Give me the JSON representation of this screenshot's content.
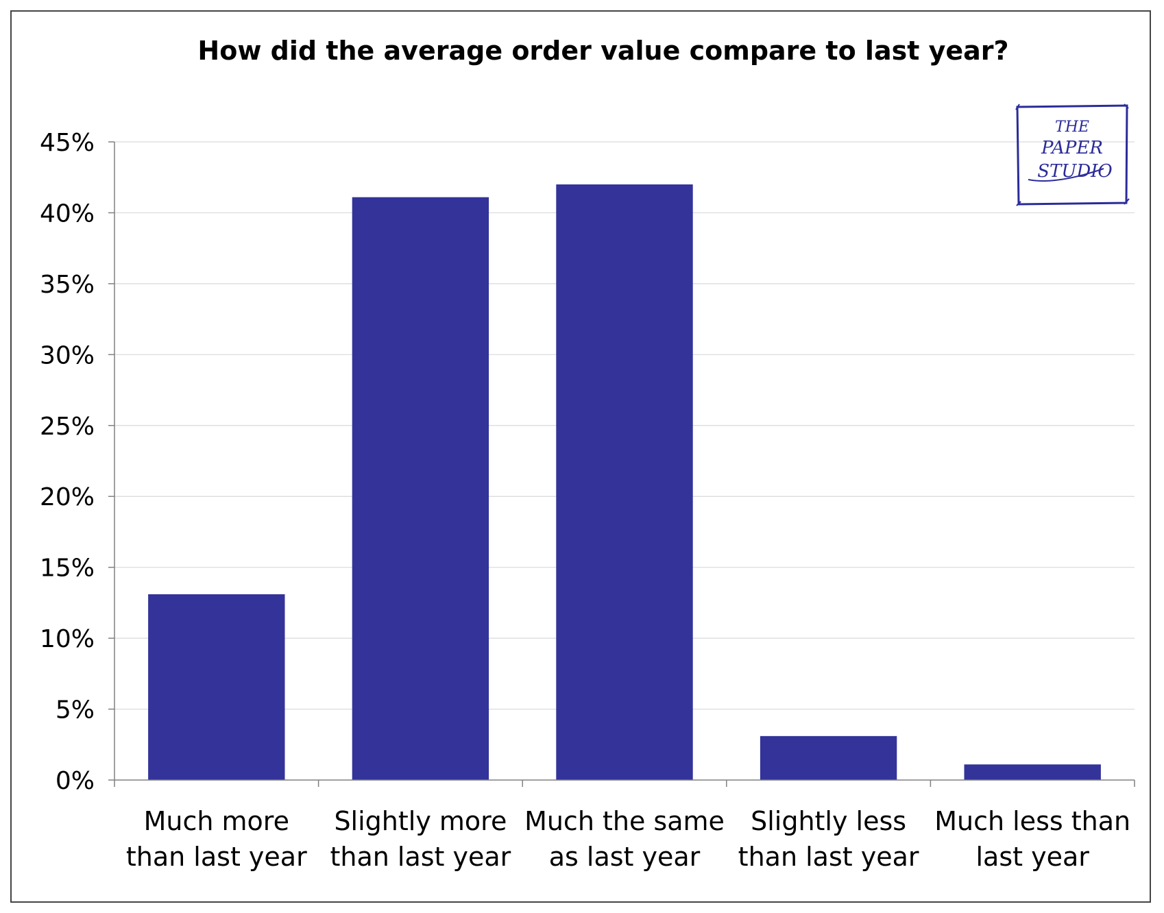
{
  "chart_data": {
    "type": "bar",
    "title": "How did the average order value compare to last year?",
    "xlabel": "",
    "ylabel": "",
    "categories": [
      [
        "Much more",
        "than last year"
      ],
      [
        "Slightly more",
        "than last year"
      ],
      [
        "Much the same",
        "as last year"
      ],
      [
        "Slightly less",
        "than last year"
      ],
      [
        "Much less than",
        "last year"
      ]
    ],
    "values": [
      13.1,
      41.1,
      42.0,
      3.1,
      1.1
    ],
    "ylim": [
      0,
      45
    ],
    "yticks": [
      0,
      5,
      10,
      15,
      20,
      25,
      30,
      35,
      40,
      45
    ],
    "ytick_labels": [
      "0%",
      "5%",
      "10%",
      "15%",
      "20%",
      "25%",
      "30%",
      "35%",
      "40%",
      "45%"
    ],
    "grid": true,
    "bar_color": "#333399",
    "gridline_color": "#d9d9d9"
  },
  "logo": {
    "text_lines": [
      "THE",
      "PAPER",
      "STUDIO"
    ],
    "color": "#2b2b9a"
  }
}
